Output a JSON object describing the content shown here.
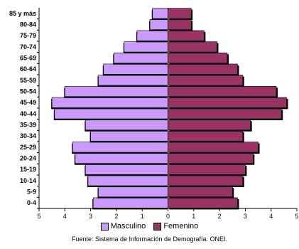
{
  "chart_data": {
    "type": "bar",
    "orientation": "horizontal",
    "layout": "population-pyramid",
    "categories": [
      "0-4",
      "5-9",
      "10-14",
      "15-19",
      "20-24",
      "25-29",
      "30-34",
      "35-39",
      "40-44",
      "45-49",
      "50-54",
      "55-59",
      "60-64",
      "65-69",
      "70-74",
      "75-79",
      "80-84",
      "85 y más"
    ],
    "series": [
      {
        "name": "Masculino",
        "color": "#cc99ff",
        "side": "left",
        "values": [
          2.9,
          2.7,
          3.1,
          3.2,
          3.6,
          3.7,
          3.0,
          3.2,
          4.4,
          4.5,
          4.0,
          2.7,
          2.5,
          2.1,
          1.7,
          1.2,
          0.7,
          0.6
        ]
      },
      {
        "name": "Femenino",
        "color": "#993366",
        "side": "right",
        "values": [
          2.7,
          2.5,
          2.9,
          3.0,
          3.3,
          3.5,
          2.9,
          3.2,
          4.4,
          4.6,
          4.2,
          2.9,
          2.7,
          2.3,
          1.9,
          1.4,
          0.9,
          0.9
        ]
      }
    ],
    "xlim": [
      -5,
      5
    ],
    "xticks": [
      "5",
      "4",
      "3",
      "2",
      "1",
      "0",
      "1",
      "2",
      "3",
      "4",
      "5"
    ],
    "grid": false,
    "legend_position": "bottom",
    "source": "Fuente: Sistema de Información de Demografía. ONEI."
  }
}
